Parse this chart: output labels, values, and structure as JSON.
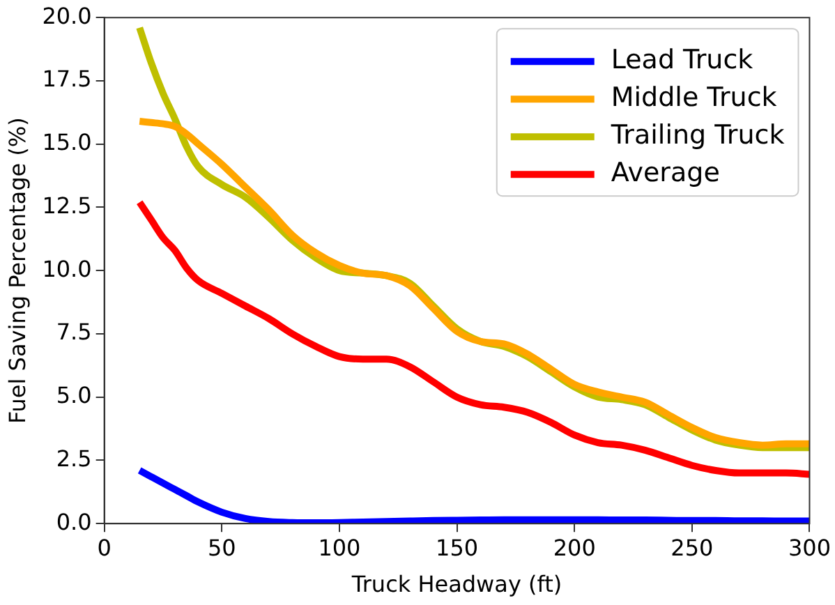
{
  "chart_data": {
    "type": "line",
    "xlabel": "Truck Headway (ft)",
    "ylabel": "Fuel Saving Percentage (%)",
    "x": [
      15,
      20,
      25,
      30,
      35,
      40,
      50,
      60,
      70,
      80,
      90,
      100,
      110,
      120,
      130,
      140,
      150,
      160,
      170,
      180,
      190,
      200,
      210,
      220,
      230,
      240,
      250,
      260,
      270,
      280,
      290,
      300
    ],
    "series": [
      {
        "name": "Lead Truck",
        "color": "#0000ff",
        "values": [
          2.1,
          1.85,
          1.6,
          1.35,
          1.1,
          0.85,
          0.45,
          0.2,
          0.08,
          0.04,
          0.03,
          0.04,
          0.06,
          0.08,
          0.1,
          0.12,
          0.13,
          0.14,
          0.15,
          0.15,
          0.15,
          0.15,
          0.15,
          0.14,
          0.14,
          0.13,
          0.12,
          0.12,
          0.11,
          0.11,
          0.1,
          0.1
        ]
      },
      {
        "name": "Middle Truck",
        "color": "#ffa500",
        "values": [
          15.9,
          15.85,
          15.8,
          15.7,
          15.4,
          15.0,
          14.2,
          13.3,
          12.4,
          11.4,
          10.7,
          10.2,
          9.9,
          9.8,
          9.4,
          8.5,
          7.6,
          7.2,
          7.1,
          6.7,
          6.1,
          5.5,
          5.2,
          5.0,
          4.8,
          4.3,
          3.8,
          3.4,
          3.2,
          3.1,
          3.15,
          3.15
        ]
      },
      {
        "name": "Trailing Truck",
        "color": "#bfbf00",
        "values": [
          19.6,
          18.2,
          17.0,
          16.0,
          14.9,
          14.1,
          13.4,
          12.9,
          12.1,
          11.2,
          10.5,
          10.0,
          9.9,
          9.8,
          9.5,
          8.6,
          7.7,
          7.2,
          7.0,
          6.6,
          6.0,
          5.4,
          5.0,
          4.9,
          4.7,
          4.2,
          3.7,
          3.3,
          3.1,
          3.0,
          3.0,
          3.0
        ]
      },
      {
        "name": "Average",
        "color": "#ff0000",
        "values": [
          12.7,
          12.0,
          11.3,
          10.8,
          10.1,
          9.6,
          9.1,
          8.6,
          8.1,
          7.5,
          7.0,
          6.6,
          6.5,
          6.5,
          6.2,
          5.6,
          5.0,
          4.7,
          4.6,
          4.4,
          4.0,
          3.5,
          3.2,
          3.1,
          2.9,
          2.6,
          2.3,
          2.1,
          2.0,
          2.0,
          2.0,
          1.95
        ]
      }
    ],
    "xlim": [
      0,
      300
    ],
    "xticks": [
      0,
      50,
      100,
      150,
      200,
      250,
      300
    ],
    "ylim": [
      0,
      20
    ],
    "yticks": [
      {
        "value": 0,
        "label": "0.0"
      },
      2.5,
      {
        "value": 5,
        "label": "5.0"
      },
      7.5,
      {
        "value": 10,
        "label": "10.0"
      },
      12.5,
      {
        "value": 15,
        "label": "15.0"
      },
      17.5,
      {
        "value": 20,
        "label": "20.0"
      }
    ],
    "grid": false,
    "legend": "top right",
    "marker": "none",
    "line_style": "solid"
  }
}
